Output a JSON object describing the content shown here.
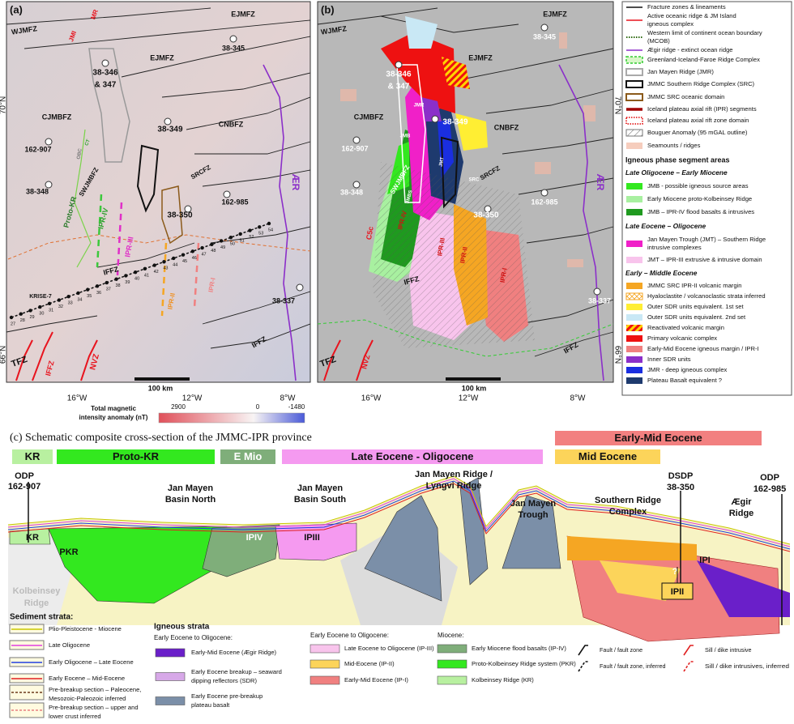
{
  "panel_a": {
    "label": "(a)",
    "map_labels": [
      "WJMFZ",
      "JMI",
      "MR",
      "EJMFZ",
      "38-345",
      "EJMFZ",
      "38-346",
      "& 347",
      "CJMBFZ",
      "38-349",
      "CNBFZ",
      "162-907",
      "CT",
      "OBC",
      "SWJMBFZ",
      "SRCFZ",
      "38-348",
      "Proto-KR",
      "IPR-IV",
      "162-985",
      "38-350",
      "IPR-III",
      "IPR-II",
      "IPR-I",
      "IFFZ",
      "KRISE-7",
      "ÆR",
      "38-337",
      "IFFZ",
      "TFZ",
      "IFFZ",
      "NVZ",
      "100 km"
    ],
    "profile_stations": [
      "27",
      "28",
      "29",
      "30",
      "31",
      "32",
      "33",
      "34",
      "35",
      "36",
      "37",
      "38",
      "39",
      "40",
      "41",
      "42",
      "43",
      "44",
      "45",
      "46",
      "47",
      "48",
      "49",
      "50",
      "51",
      "52",
      "53",
      "54"
    ],
    "axis": {
      "x_labels": [
        "16°W",
        "12°W",
        "8°W"
      ],
      "y_labels": [
        "70°N",
        "66°N"
      ]
    },
    "colorbar": {
      "title": [
        "Total magnetic",
        "intensity anomaly (nT)"
      ],
      "ticks": [
        "2900",
        "0",
        "-1480"
      ]
    }
  },
  "panel_b": {
    "label": "(b)",
    "map_labels": [
      "WJMFZ",
      "EJMFZ",
      "38-345",
      "EJMFZ",
      "38-346",
      "& 347",
      "JMR",
      "38-349",
      "CJMBFZ",
      "CNBFZ",
      "JMB",
      "162-907",
      "JMT",
      "SRC",
      "SWJMBFZ",
      "SRCFZ",
      "38-348",
      "JMBS",
      "C5c",
      "IPR-IV",
      "162-985",
      "38-350",
      "IPR-III",
      "IPR-II",
      "IPR-I",
      "IFFZ",
      "ÆR",
      "38-337",
      "IFFZ",
      "TFZ",
      "NVZ",
      "100 km"
    ],
    "axis": {
      "x_labels": [
        "16°W",
        "12°W",
        "8°W"
      ],
      "y_labels": [
        "70°N",
        "66°N"
      ]
    }
  },
  "legend": {
    "items": [
      {
        "label": [
          "Fracture zones & lineaments"
        ],
        "swatch": "line",
        "color": "#111111"
      },
      {
        "label": [
          "Active oceanic ridge & JM Island",
          "igneous complex"
        ],
        "swatch": "line",
        "color": "#e8141e"
      },
      {
        "label": [
          "Western limit of continent ocean boundary",
          "(MCOB)"
        ],
        "swatch": "dotted",
        "color": "#2f6b12"
      },
      {
        "label": [
          "Ægir ridge - extinct ocean ridge"
        ],
        "swatch": "line",
        "color": "#8b2fc9"
      },
      {
        "label": [
          "Greenland-Iceland-Faroe Ridge Complex"
        ],
        "swatch": "dashed-outline",
        "color": "#33cc33"
      },
      {
        "label": [
          "Jan Mayen Ridge (JMR)"
        ],
        "swatch": "outline",
        "color": "#aaaaaa"
      },
      {
        "label": [
          "JMMC Southern Ridge Complex (SRC)"
        ],
        "swatch": "outline",
        "color": "#111111"
      },
      {
        "label": [
          "JMMC SRC oceanic domain"
        ],
        "swatch": "outline",
        "color": "#8b5a1a"
      },
      {
        "label": [
          "Iceland plateau axial rift (IPR) segments"
        ],
        "swatch": "thick-line",
        "color": "#a00000"
      },
      {
        "label": [
          "Iceland plateau axial rift zone domain"
        ],
        "swatch": "dotted-outline",
        "color": "#e00000"
      },
      {
        "label": [
          "Bouguer Anomaly (95 mGAL outline)"
        ],
        "swatch": "hatch",
        "color": "#444444"
      },
      {
        "label": [
          "Seamounts / ridges"
        ],
        "swatch": "fill",
        "color": "#f6cdbd"
      }
    ],
    "igneous_title": "Igneous phase segment areas",
    "groups": [
      {
        "heading": "Late Oligocene – Early Miocene",
        "items": [
          {
            "label": [
              "JMB - possible igneous source areas"
            ],
            "swatch": "fill",
            "color": "#33e81f"
          },
          {
            "label": [
              "Early Miocene proto-Kolbeinsey Ridge"
            ],
            "swatch": "fill",
            "color": "#a8f0a0"
          },
          {
            "label": [
              "JMB – IPR-IV flood basalts & intrusives"
            ],
            "swatch": "fill",
            "color": "#1f9a1f"
          }
        ]
      },
      {
        "heading": "Late Eocene – Oligocene",
        "items": [
          {
            "label": [
              "Jan Mayen Trough (JMT) – Southern Ridge",
              "intrusive complexes"
            ],
            "swatch": "fill",
            "color": "#f020c8"
          },
          {
            "label": [
              "JMT – IPR-III extrusive & intrusive domain"
            ],
            "swatch": "fill",
            "color": "#f8c4ec"
          }
        ]
      },
      {
        "heading": "Early – Middle Eocene",
        "items": [
          {
            "label": [
              "JMMC SRC IPR-II volcanic margin"
            ],
            "swatch": "fill",
            "color": "#f5a623"
          },
          {
            "label": [
              "Hyaloclastite / volcanoclastic strata inferred"
            ],
            "swatch": "crosshatch",
            "color": "#f5a623"
          },
          {
            "label": [
              "Outer SDR units equivalent. 1st set"
            ],
            "swatch": "fill",
            "color": "#ffee33"
          },
          {
            "label": [
              "Outer SDR units equivalent. 2nd set"
            ],
            "swatch": "fill",
            "color": "#c9e8f5"
          },
          {
            "label": [
              "Reactivated volcanic margin"
            ],
            "swatch": "stripes",
            "color": "#ee1111"
          },
          {
            "label": [
              "Primary volcanic complex"
            ],
            "swatch": "fill",
            "color": "#ee1111"
          },
          {
            "label": [
              "Early-Mid Eocene igneous margin / IPR-I"
            ],
            "swatch": "fill",
            "color": "#f08080"
          },
          {
            "label": [
              "Inner SDR units"
            ],
            "swatch": "fill",
            "color": "#8b2fc9"
          },
          {
            "label": [
              "JMR - deep igneous complex"
            ],
            "swatch": "fill",
            "color": "#1a2ee0"
          },
          {
            "label": [
              "Plateau Basalt equivalent ?"
            ],
            "swatch": "fill",
            "color": "#1e3a6e"
          }
        ]
      }
    ]
  },
  "panel_c": {
    "title": "(c) Schematic composite cross-section of the JMMC-IPR province",
    "age_bars": [
      {
        "label": "KR",
        "color": "#b8f0a0"
      },
      {
        "label": "Proto-KR",
        "color": "#33e81f"
      },
      {
        "label": "E Mio",
        "color": "#7fae7a"
      },
      {
        "label": "Late Eocene - Oligocene",
        "color": "#f59af0"
      },
      {
        "label": "Early-Mid Eocene",
        "color": "#f28080"
      },
      {
        "label": "Mid Eocene",
        "color": "#fcd45a"
      }
    ],
    "site_labels": [
      [
        "ODP",
        "162-907"
      ],
      [
        "Jan Mayen",
        "Basin North"
      ],
      [
        "Jan Mayen",
        "Basin South"
      ],
      [
        "Jan Mayen Ridge /",
        "Lyngvi Ridge"
      ],
      [
        "Jan Mayen",
        "Trough"
      ],
      [
        "Southern Ridge",
        "Complex"
      ],
      [
        "DSDP",
        "38-350"
      ],
      [
        "ODP",
        "162-985"
      ],
      [
        "Ægir",
        "Ridge"
      ],
      [
        "Kolbeinsey",
        "Ridge"
      ]
    ],
    "unit_labels": [
      "KR",
      "PKR",
      "IPIV",
      "IPIII",
      "IPI",
      "?",
      "IPII"
    ],
    "legend": {
      "sediment_title": "Sediment strata:",
      "sediment": [
        {
          "label": [
            "Plio-Pleistocene - Miocene"
          ],
          "color": "#c8c800"
        },
        {
          "label": [
            "Late Oligocene"
          ],
          "color": "#e040e0"
        },
        {
          "label": [
            "Early Oligocene – Late Eocene"
          ],
          "color": "#2040e0"
        },
        {
          "label": [
            "Early Eocene – Mid-Eocene"
          ],
          "color": "#e02020"
        },
        {
          "label": [
            "Pre-breakup section – Paleocene,",
            "Mesozoic-Paleozoic inferred"
          ],
          "color": "#6b3a1a"
        },
        {
          "label": [
            "Pre-breakup section – upper and",
            "lower crust inferred"
          ],
          "color": "#e88080"
        }
      ],
      "igneous_title": "Igneous strata",
      "igneous_subtitle": "Early Eocene to Oligocene:",
      "igneous": [
        {
          "label": [
            "Early-Mid Eocene (Ægir Ridge)"
          ],
          "color": "#6a1fc9"
        },
        {
          "label": [
            "Early Eocene breakup – seaward",
            "dipping reflectors (SDR)"
          ],
          "color": "#d7a8e8"
        },
        {
          "label": [
            "Early Eocene pre-breakup",
            "plateau basalt"
          ],
          "color": "#7b8fa8"
        }
      ],
      "oligocene_title": "Early Eocene to Oligocene:",
      "oligocene": [
        {
          "label": [
            "Late Eocene to Oligocene (IP-III)"
          ],
          "color": "#f8c4ec"
        },
        {
          "label": [
            "Mid-Eocene (IP-II)"
          ],
          "color": "#fcd45a"
        },
        {
          "label": [
            "Early-Mid Eocene (IP-I)"
          ],
          "color": "#f08080"
        }
      ],
      "miocene_title": "Miocene:",
      "miocene": [
        {
          "label": [
            "Early Miocene flood basalts (IP-IV)"
          ],
          "color": "#7fae7a"
        },
        {
          "label": [
            "Proto-Kolbeinsey Ridge system (PKR)"
          ],
          "color": "#33e81f"
        },
        {
          "label": [
            "Kolbeinsey Ridge (KR)"
          ],
          "color": "#b8f0a0"
        }
      ],
      "structures": [
        "Fault / fault zone",
        "Fault / fault zone, inferred",
        "Sill / dike intrusive",
        "Sill / dike intrusives, inferred"
      ]
    }
  }
}
